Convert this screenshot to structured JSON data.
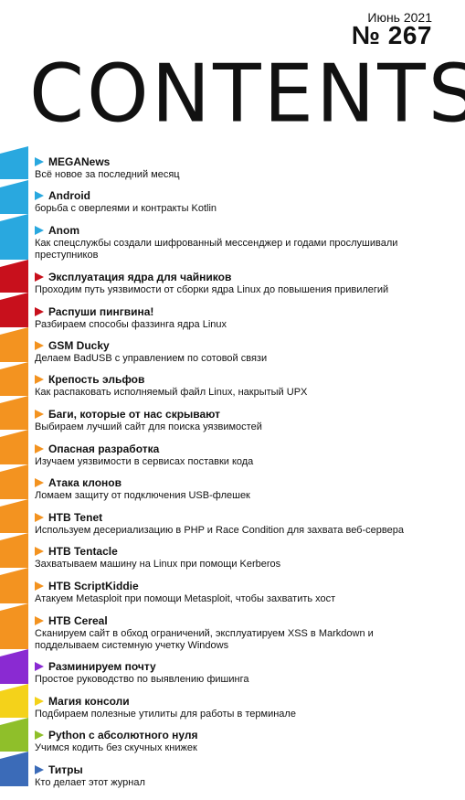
{
  "issue": {
    "date": "Июнь 2021",
    "number": "№ 267"
  },
  "title": "CONTENTS",
  "colors": {
    "blue": "#29a8df",
    "red": "#c8101c",
    "orange": "#f39320",
    "purple": "#8a2ad2",
    "yellow": "#f4d21a",
    "green": "#8fbf2a",
    "navy": "#3b6bb8"
  },
  "entries": [
    {
      "title": "MEGANews",
      "desc": "Всё новое за последний месяц",
      "color": "#29a8df"
    },
    {
      "title": "Android",
      "desc": "борьба с оверлеями и контракты Kotlin",
      "color": "#29a8df"
    },
    {
      "title": "Anom",
      "desc": "Как спецслужбы создали шифрованный мессенджер и годами прослушивали преступников",
      "color": "#29a8df"
    },
    {
      "title": "Эксплуатация ядра для чайников",
      "desc": "Проходим путь уязвимости от сборки ядра Linux до повышения привилегий",
      "color": "#c8101c"
    },
    {
      "title": "Распуши пингвина!",
      "desc": "Разбираем способы фаззинга ядра Linux",
      "color": "#c8101c"
    },
    {
      "title": "GSM Ducky",
      "desc": "Делаем BadUSB с управлением по сотовой связи",
      "color": "#f39320"
    },
    {
      "title": "Крепость эльфов",
      "desc": "Как распаковать исполняемый файл Linux, накрытый UPX",
      "color": "#f39320"
    },
    {
      "title": "Баги, которые от нас скрывают",
      "desc": "Выбираем лучший сайт для поиска уязвимостей",
      "color": "#f39320"
    },
    {
      "title": "Опасная разработка",
      "desc": "Изучаем уязвимости в сервисах поставки кода",
      "color": "#f39320"
    },
    {
      "title": "Атака клонов",
      "desc": "Ломаем защиту от подключения USB-флешек",
      "color": "#f39320"
    },
    {
      "title": "HTB Tenet",
      "desc": "Используем десериализацию в PHP и Race Condition для захвата веб-сервера",
      "color": "#f39320"
    },
    {
      "title": "HTB Tentacle",
      "desc": "Захватываем машину на Linux при помощи Kerberos",
      "color": "#f39320"
    },
    {
      "title": "HTB ScriptKiddie",
      "desc": "Атакуем Metasploit при помощи Metasploit, чтобы захватить хост",
      "color": "#f39320"
    },
    {
      "title": "HTB Cereal",
      "desc": "Сканируем сайт в обход ограничений, эксплуатируем XSS в Markdown и подделываем системную учетку Windows",
      "color": "#f39320"
    },
    {
      "title": "Разминируем почту",
      "desc": "Простое руководство по выявлению фишинга",
      "color": "#8a2ad2"
    },
    {
      "title": "Магия консоли",
      "desc": "Подбираем полезные утилиты для работы в терминале",
      "color": "#f4d21a"
    },
    {
      "title": "Python с абсолютного нуля",
      "desc": "Учимся кодить без скучных книжек",
      "color": "#8fbf2a"
    },
    {
      "title": "Титры",
      "desc": "Кто делает этот журнал",
      "color": "#3b6bb8"
    }
  ]
}
